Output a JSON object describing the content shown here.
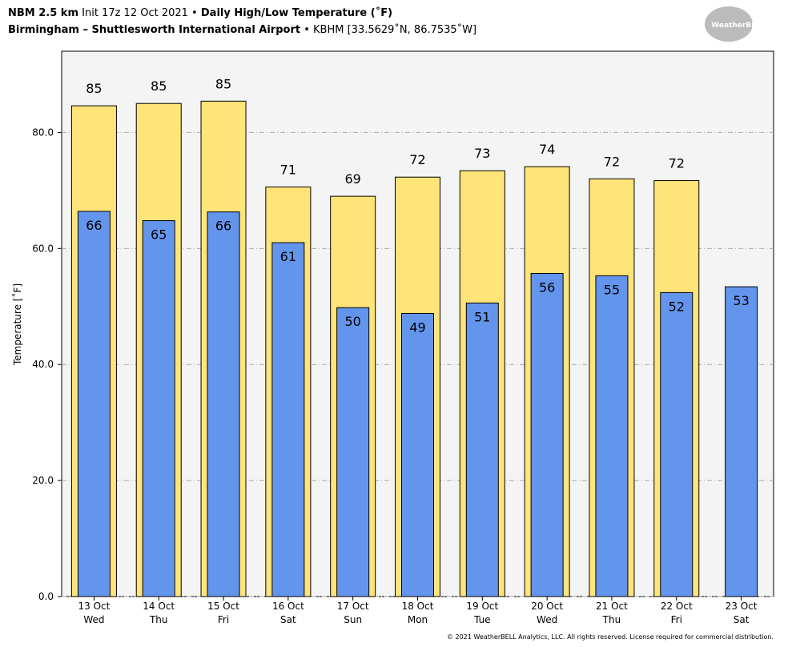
{
  "chart_data": {
    "type": "bar",
    "model": "NBM 2.5 km",
    "init": "Init 17z 12 Oct 2021 •",
    "title": "Daily High/Low Temperature (˚F)",
    "location": "Birmingham – Shuttlesworth International Airport",
    "subtitle": "• KBHM [33.5629˚N, 86.7535˚W]",
    "ylabel": "Temperature [˚F]",
    "logo": "WeatherBELL",
    "footer": "© 2021 WeatherBELL Analytics, LLC. All rights reserved. License required for commercial distribution.",
    "categories": [
      [
        "13 Oct",
        "Wed"
      ],
      [
        "14 Oct",
        "Thu"
      ],
      [
        "15 Oct",
        "Fri"
      ],
      [
        "16 Oct",
        "Sat"
      ],
      [
        "17 Oct",
        "Sun"
      ],
      [
        "18 Oct",
        "Mon"
      ],
      [
        "19 Oct",
        "Tue"
      ],
      [
        "20 Oct",
        "Wed"
      ],
      [
        "21 Oct",
        "Thu"
      ],
      [
        "22 Oct",
        "Fri"
      ],
      [
        "23 Oct",
        "Sat"
      ]
    ],
    "series": [
      {
        "name": "High",
        "color": "#ffe47a",
        "values": [
          84.6,
          85.0,
          85.4,
          70.6,
          69.0,
          72.3,
          73.4,
          74.1,
          72.0,
          71.7,
          null
        ],
        "value_labels": [
          "85",
          "85",
          "85",
          "71",
          "69",
          "72",
          "73",
          "74",
          "72",
          "72",
          null
        ]
      },
      {
        "name": "Low",
        "color": "#6495ed",
        "values": [
          66.4,
          64.8,
          66.3,
          61.0,
          49.8,
          48.8,
          50.6,
          55.7,
          55.3,
          52.4,
          53.4
        ],
        "value_labels": [
          "66",
          "65",
          "66",
          "61",
          "50",
          "49",
          "51",
          "56",
          "55",
          "52",
          "53"
        ]
      }
    ],
    "ylim": [
      0,
      94
    ],
    "yticks": [
      {
        "value": 0,
        "label": "0.0"
      },
      {
        "value": 20,
        "label": "20.0"
      },
      {
        "value": 40,
        "label": "40.0"
      },
      {
        "value": 60,
        "label": "60.0"
      },
      {
        "value": 80,
        "label": "80.0"
      }
    ],
    "grid": true
  }
}
